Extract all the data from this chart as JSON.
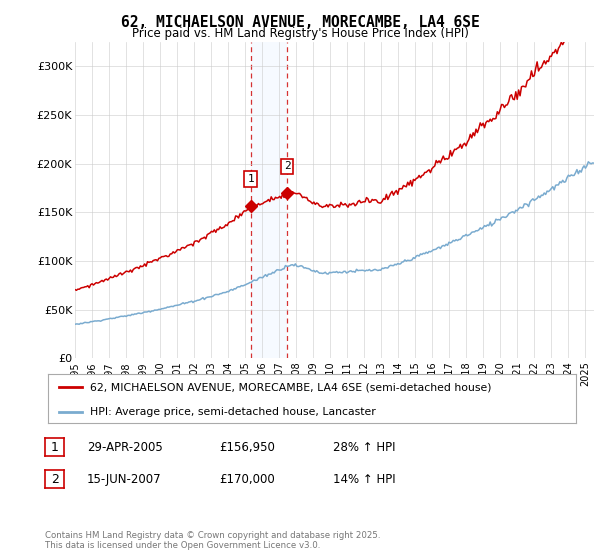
{
  "title": "62, MICHAELSON AVENUE, MORECAMBE, LA4 6SE",
  "subtitle": "Price paid vs. HM Land Registry's House Price Index (HPI)",
  "red_label": "62, MICHAELSON AVENUE, MORECAMBE, LA4 6SE (semi-detached house)",
  "blue_label": "HPI: Average price, semi-detached house, Lancaster",
  "transaction1_date": "29-APR-2005",
  "transaction1_price": "£156,950",
  "transaction1_hpi": "28% ↑ HPI",
  "transaction2_date": "15-JUN-2007",
  "transaction2_price": "£170,000",
  "transaction2_hpi": "14% ↑ HPI",
  "copyright": "Contains HM Land Registry data © Crown copyright and database right 2025.\nThis data is licensed under the Open Government Licence v3.0.",
  "ylim": [
    0,
    325000
  ],
  "yticks": [
    0,
    50000,
    100000,
    150000,
    200000,
    250000,
    300000
  ],
  "ytick_labels": [
    "£0",
    "£50K",
    "£100K",
    "£150K",
    "£200K",
    "£250K",
    "£300K"
  ],
  "background_color": "#ffffff",
  "plot_bg_color": "#ffffff",
  "grid_color": "#cccccc",
  "red_color": "#cc0000",
  "blue_color": "#7aabcf",
  "shade_color": "#ddeeff",
  "marker1_x": 2005.32,
  "marker2_x": 2007.46,
  "transaction1_y": 156950,
  "transaction2_y": 170000,
  "xmin": 1995.0,
  "xmax": 2025.5
}
